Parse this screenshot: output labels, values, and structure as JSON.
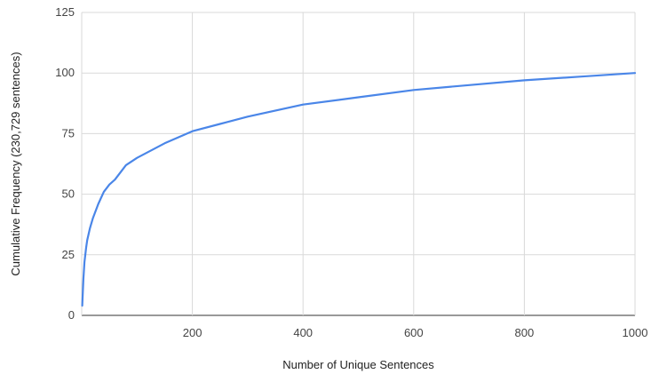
{
  "chart_data": {
    "type": "line",
    "xlabel": "Number of Unique Sentences",
    "ylabel": "Cumulative Frequency (230,729 sentences)",
    "xlim": [
      0,
      1000
    ],
    "ylim": [
      0,
      125
    ],
    "x_ticks": [
      200,
      400,
      600,
      800,
      1000
    ],
    "y_ticks": [
      0,
      25,
      50,
      75,
      100,
      125
    ],
    "x_tick_labels": [
      "200",
      "400",
      "600",
      "800",
      "1000"
    ],
    "y_tick_labels": [
      "0",
      "25",
      "50",
      "75",
      "100",
      "125"
    ],
    "grid": true,
    "legend": "none",
    "line_color": "#4a86e8",
    "series": [
      {
        "x": [
          1,
          3,
          5,
          8,
          10,
          15,
          20,
          30,
          40,
          50,
          60,
          80,
          100,
          150,
          200,
          250,
          300,
          400,
          500,
          600,
          700,
          800,
          900,
          1000
        ],
        "values": [
          4,
          15,
          22,
          28,
          31,
          36,
          40,
          46,
          51,
          54,
          56,
          62,
          65,
          71,
          76,
          79,
          82,
          87,
          90,
          93,
          95,
          97,
          98.5,
          100
        ]
      }
    ]
  }
}
